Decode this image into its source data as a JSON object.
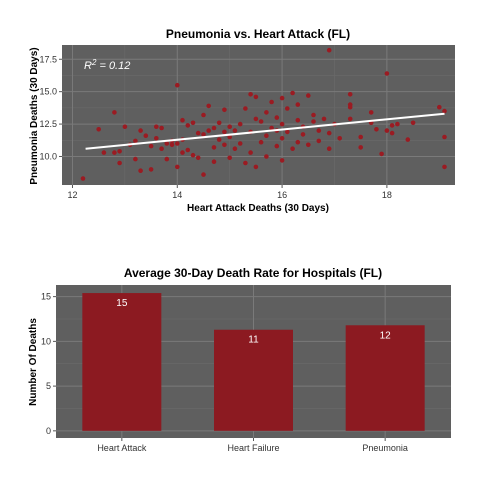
{
  "colors": {
    "panel": "#5f5f5f",
    "grid_major": "#7a7a7a",
    "grid_minor": "#6b6b6b",
    "point": "#9b1b22",
    "bar": "#8c1a21",
    "fit_line": "#ffffff"
  },
  "chart_data": [
    {
      "type": "scatter",
      "title": "Pneumonia vs. Heart Attack (FL)",
      "xlabel": "Heart Attack Deaths (30 Days)",
      "ylabel": "Pneumonia Deaths (30 Days)",
      "xlim": [
        11.8,
        19.3
      ],
      "ylim": [
        7.8,
        18.6
      ],
      "xticks": [
        12,
        14,
        16,
        18
      ],
      "xtick_labels": [
        "12",
        "14",
        "16",
        "18"
      ],
      "yticks": [
        10.0,
        12.5,
        15.0,
        17.5
      ],
      "ytick_labels": [
        "10.0",
        "12.5",
        "15.0",
        "17.5"
      ],
      "annotation": {
        "text_prefix": "R",
        "superscript": "2",
        "text_suffix": " = 0.12"
      },
      "trend_line": {
        "x": [
          12.25,
          19.1
        ],
        "y": [
          10.6,
          13.3
        ]
      },
      "grid": true,
      "points": [
        [
          12.2,
          8.3
        ],
        [
          12.5,
          12.1
        ],
        [
          12.8,
          13.4
        ],
        [
          12.8,
          10.3
        ],
        [
          12.9,
          9.5
        ],
        [
          12.9,
          10.4
        ],
        [
          13.0,
          12.3
        ],
        [
          13.2,
          11.2
        ],
        [
          13.2,
          9.8
        ],
        [
          13.3,
          8.9
        ],
        [
          13.3,
          12.0
        ],
        [
          13.4,
          11.6
        ],
        [
          13.5,
          10.8
        ],
        [
          13.5,
          9.0
        ],
        [
          13.6,
          12.3
        ],
        [
          13.6,
          11.4
        ],
        [
          13.7,
          10.6
        ],
        [
          13.7,
          12.2
        ],
        [
          13.8,
          11.0
        ],
        [
          13.8,
          9.8
        ],
        [
          13.9,
          11.2
        ],
        [
          13.9,
          10.9
        ],
        [
          14.0,
          11.0
        ],
        [
          14.0,
          9.2
        ],
        [
          14.0,
          15.5
        ],
        [
          14.1,
          12.8
        ],
        [
          14.1,
          11.3
        ],
        [
          14.2,
          10.5
        ],
        [
          14.2,
          12.4
        ],
        [
          14.3,
          10.1
        ],
        [
          14.3,
          12.6
        ],
        [
          14.4,
          11.8
        ],
        [
          14.4,
          9.9
        ],
        [
          14.5,
          8.6
        ],
        [
          14.5,
          13.2
        ],
        [
          14.5,
          11.7
        ],
        [
          14.6,
          12.0
        ],
        [
          14.6,
          13.9
        ],
        [
          14.7,
          12.2
        ],
        [
          14.7,
          10.7
        ],
        [
          14.7,
          9.6
        ],
        [
          14.8,
          11.3
        ],
        [
          14.8,
          12.6
        ],
        [
          14.9,
          10.9
        ],
        [
          14.9,
          13.6
        ],
        [
          15.0,
          11.5
        ],
        [
          15.0,
          12.3
        ],
        [
          15.0,
          9.9
        ],
        [
          15.1,
          10.6
        ],
        [
          15.1,
          12.0
        ],
        [
          15.2,
          12.5
        ],
        [
          15.2,
          11.0
        ],
        [
          15.3,
          13.7
        ],
        [
          15.3,
          9.5
        ],
        [
          15.4,
          14.8
        ],
        [
          15.4,
          11.9
        ],
        [
          15.4,
          10.3
        ],
        [
          15.5,
          12.9
        ],
        [
          15.5,
          14.6
        ],
        [
          15.5,
          9.2
        ],
        [
          15.6,
          11.1
        ],
        [
          15.6,
          12.7
        ],
        [
          15.7,
          13.4
        ],
        [
          15.7,
          11.6
        ],
        [
          15.7,
          10.0
        ],
        [
          15.8,
          14.2
        ],
        [
          15.8,
          12.2
        ],
        [
          15.9,
          10.8
        ],
        [
          15.9,
          13.0
        ],
        [
          16.0,
          11.4
        ],
        [
          16.0,
          14.5
        ],
        [
          16.0,
          12.5
        ],
        [
          16.0,
          9.7
        ],
        [
          16.1,
          11.9
        ],
        [
          16.1,
          13.7
        ],
        [
          16.2,
          14.9
        ],
        [
          16.2,
          10.6
        ],
        [
          16.3,
          12.8
        ],
        [
          16.3,
          11.1
        ],
        [
          16.3,
          14.0
        ],
        [
          16.4,
          12.3
        ],
        [
          16.5,
          14.7
        ],
        [
          16.5,
          10.9
        ],
        [
          16.6,
          13.2
        ],
        [
          16.7,
          12.0
        ],
        [
          16.7,
          11.2
        ],
        [
          16.8,
          12.9
        ],
        [
          16.9,
          18.2
        ],
        [
          16.9,
          10.6
        ],
        [
          16.9,
          11.8
        ],
        [
          17.0,
          12.5
        ],
        [
          17.1,
          11.4
        ],
        [
          17.3,
          14.0
        ],
        [
          17.3,
          13.8
        ],
        [
          17.3,
          12.9
        ],
        [
          17.3,
          14.8
        ],
        [
          17.5,
          11.5
        ],
        [
          17.5,
          10.7
        ],
        [
          17.7,
          12.6
        ],
        [
          17.7,
          13.4
        ],
        [
          17.8,
          12.1
        ],
        [
          17.9,
          10.2
        ],
        [
          18.0,
          16.4
        ],
        [
          18.0,
          12.0
        ],
        [
          18.1,
          11.8
        ],
        [
          18.1,
          12.4
        ],
        [
          18.2,
          12.5
        ],
        [
          18.4,
          11.3
        ],
        [
          18.5,
          12.6
        ],
        [
          19.0,
          13.8
        ],
        [
          19.1,
          13.5
        ],
        [
          19.1,
          11.5
        ],
        [
          19.1,
          9.2
        ],
        [
          12.6,
          10.3
        ],
        [
          13.1,
          10.9
        ],
        [
          14.1,
          10.3
        ],
        [
          14.9,
          11.9
        ],
        [
          15.9,
          12.0
        ],
        [
          16.4,
          11.7
        ],
        [
          16.6,
          12.7
        ]
      ]
    },
    {
      "type": "bar",
      "title": "Average 30-Day Death Rate for Hospitals (FL)",
      "xlabel": "",
      "ylabel": "Number Of Deaths",
      "categories": [
        "Heart Attack",
        "Heart Failure",
        "Pneumonia"
      ],
      "values": [
        15.4,
        11.3,
        11.8
      ],
      "data_labels": [
        "15",
        "11",
        "12"
      ],
      "ylim": [
        -0.8,
        16.3
      ],
      "yticks": [
        0,
        5,
        10,
        15
      ],
      "ytick_labels": [
        "0",
        "5",
        "10",
        "15"
      ],
      "grid": true
    }
  ]
}
